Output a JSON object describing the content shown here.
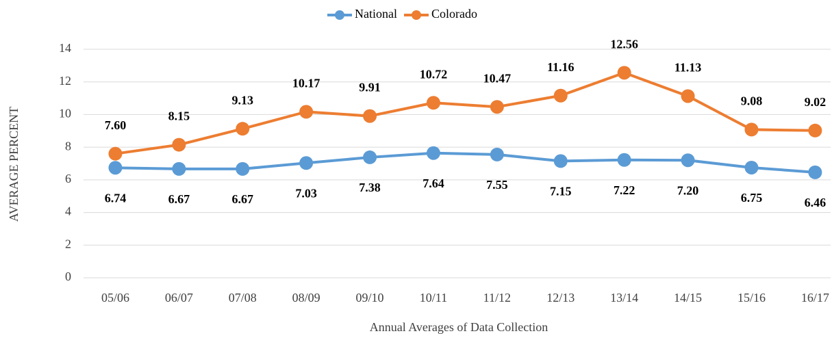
{
  "chart_data": {
    "type": "line",
    "categories": [
      "05/06",
      "06/07",
      "07/08",
      "08/09",
      "09/10",
      "10/11",
      "11/12",
      "12/13",
      "13/14",
      "14/15",
      "15/16",
      "16/17"
    ],
    "series": [
      {
        "name": "National",
        "color": "#5b9bd5",
        "values": [
          6.74,
          6.67,
          6.67,
          7.03,
          7.38,
          7.64,
          7.55,
          7.15,
          7.22,
          7.2,
          6.75,
          6.46
        ],
        "value_labels": [
          "6.74",
          "6.67",
          "6.67",
          "7.03",
          "7.38",
          "7.64",
          "7.55",
          "7.15",
          "7.22",
          "7.20",
          "6.75",
          "6.46"
        ]
      },
      {
        "name": "Colorado",
        "color": "#ed7d31",
        "values": [
          7.6,
          8.15,
          9.13,
          10.17,
          9.91,
          10.72,
          10.47,
          11.16,
          12.56,
          11.13,
          9.08,
          9.02
        ],
        "value_labels": [
          "7.60",
          "8.15",
          "9.13",
          "10.17",
          "9.91",
          "10.72",
          "10.47",
          "11.16",
          "12.56",
          "11.13",
          "9.08",
          "9.02"
        ]
      }
    ],
    "ylabel": "AVERAGE PERCENT",
    "xlabel": "Annual Averages of Data Collection",
    "ylim": [
      0,
      14
    ],
    "yticks": [
      0,
      2,
      4,
      6,
      8,
      10,
      12,
      14
    ],
    "grid": true,
    "legend": "top"
  }
}
